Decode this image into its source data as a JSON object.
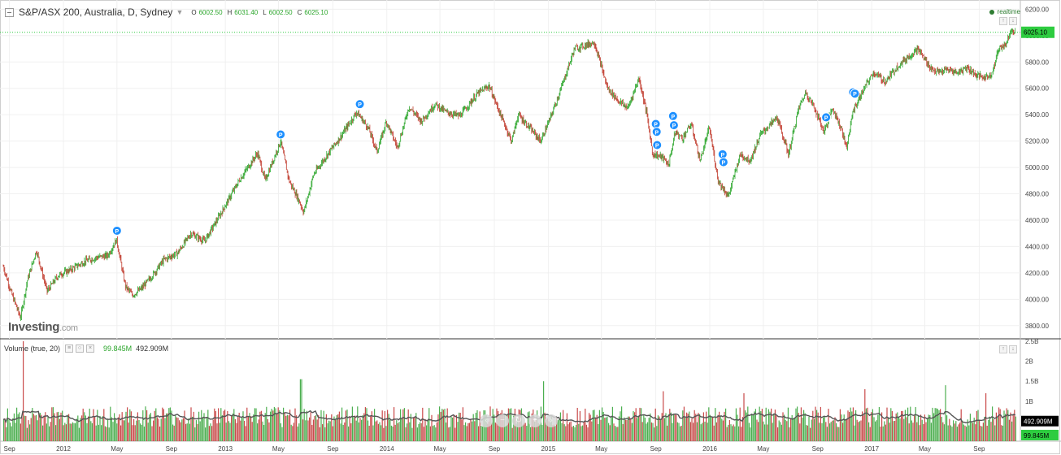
{
  "header": {
    "title": "S&P/ASX 200, Australia, D, Sydney",
    "o_label": "O",
    "o_value": "6002.50",
    "h_label": "H",
    "h_value": "6031.40",
    "l_label": "L",
    "l_value": "6002.50",
    "c_label": "C",
    "c_value": "6025.10",
    "realtime": "realtime"
  },
  "volume_header": {
    "title": "Volume (true, 20)",
    "value_green": "99.845M",
    "value_ma": "492.909M"
  },
  "logo": {
    "text": "Investing",
    "suffix": ".com"
  },
  "colors": {
    "up": "#2aa52a",
    "down": "#c0392b",
    "volume_up": "#4caf50",
    "volume_down": "#c94a4a",
    "ma": "#555555",
    "last_price_bg": "#2ecc40",
    "p_marker": "#1e90ff"
  },
  "chart_data": [
    {
      "type": "line",
      "title": "S&P/ASX 200, Australia, D, Sydney",
      "price_axis": {
        "ticks": [
          "6200.00",
          "6000.00",
          "5800.00",
          "5600.00",
          "5400.00",
          "5200.00",
          "5000.00",
          "4800.00",
          "4600.00",
          "4400.00",
          "4200.00",
          "4000.00",
          "3800.00"
        ],
        "ylim": [
          3700,
          6270
        ]
      },
      "last_price_label": "6025.10",
      "last_price": 6025.1,
      "x_ticks": [
        "Sep",
        "2012",
        "May",
        "Sep",
        "2013",
        "May",
        "Sep",
        "2014",
        "May",
        "Sep",
        "2015",
        "May",
        "Sep",
        "2016",
        "May",
        "Sep",
        "2017",
        "May",
        "Sep"
      ],
      "x_tick_dates": [
        "2011-09-01",
        "2012-01-01",
        "2012-05-01",
        "2012-09-01",
        "2013-01-01",
        "2013-05-01",
        "2013-09-01",
        "2014-01-01",
        "2014-05-01",
        "2014-09-01",
        "2015-01-01",
        "2015-05-01",
        "2015-09-01",
        "2016-01-01",
        "2016-05-01",
        "2016-09-01",
        "2017-01-01",
        "2017-05-01",
        "2017-09-01"
      ],
      "x_range": [
        "2011-08-18",
        "2017-11-22"
      ],
      "close_series": [
        [
          "2011-08-18",
          4250
        ],
        [
          "2011-09-05",
          4050
        ],
        [
          "2011-09-26",
          3860
        ],
        [
          "2011-10-12",
          4150
        ],
        [
          "2011-11-01",
          4370
        ],
        [
          "2011-11-25",
          4060
        ],
        [
          "2011-12-20",
          4180
        ],
        [
          "2012-01-20",
          4230
        ],
        [
          "2012-02-20",
          4290
        ],
        [
          "2012-03-20",
          4320
        ],
        [
          "2012-04-10",
          4330
        ],
        [
          "2012-04-30",
          4450
        ],
        [
          "2012-05-20",
          4100
        ],
        [
          "2012-06-05",
          4030
        ],
        [
          "2012-06-25",
          4080
        ],
        [
          "2012-07-20",
          4180
        ],
        [
          "2012-08-15",
          4300
        ],
        [
          "2012-09-15",
          4350
        ],
        [
          "2012-10-15",
          4500
        ],
        [
          "2012-11-15",
          4440
        ],
        [
          "2012-12-20",
          4640
        ],
        [
          "2013-02-01",
          4900
        ],
        [
          "2013-03-15",
          5110
        ],
        [
          "2013-04-01",
          4900
        ],
        [
          "2013-05-06",
          5200
        ],
        [
          "2013-05-25",
          4900
        ],
        [
          "2013-06-15",
          4760
        ],
        [
          "2013-06-27",
          4660
        ],
        [
          "2013-07-20",
          4950
        ],
        [
          "2013-08-20",
          5100
        ],
        [
          "2013-09-20",
          5240
        ],
        [
          "2013-10-25",
          5420
        ],
        [
          "2013-11-20",
          5300
        ],
        [
          "2013-12-10",
          5120
        ],
        [
          "2013-12-31",
          5350
        ],
        [
          "2014-01-25",
          5150
        ],
        [
          "2014-02-20",
          5460
        ],
        [
          "2014-03-20",
          5350
        ],
        [
          "2014-04-20",
          5480
        ],
        [
          "2014-05-15",
          5420
        ],
        [
          "2014-06-15",
          5390
        ],
        [
          "2014-07-25",
          5560
        ],
        [
          "2014-08-20",
          5620
        ],
        [
          "2014-09-15",
          5400
        ],
        [
          "2014-10-10",
          5200
        ],
        [
          "2014-10-25",
          5400
        ],
        [
          "2014-11-20",
          5300
        ],
        [
          "2014-12-15",
          5200
        ],
        [
          "2015-01-05",
          5370
        ],
        [
          "2015-01-30",
          5600
        ],
        [
          "2015-03-01",
          5900
        ],
        [
          "2015-04-15",
          5950
        ],
        [
          "2015-05-15",
          5600
        ],
        [
          "2015-06-10",
          5500
        ],
        [
          "2015-06-30",
          5450
        ],
        [
          "2015-07-25",
          5680
        ],
        [
          "2015-08-12",
          5400
        ],
        [
          "2015-08-25",
          5100
        ],
        [
          "2015-09-15",
          5080
        ],
        [
          "2015-09-30",
          5020
        ],
        [
          "2015-10-15",
          5270
        ],
        [
          "2015-10-31",
          5220
        ],
        [
          "2015-11-20",
          5330
        ],
        [
          "2015-12-10",
          5050
        ],
        [
          "2015-12-31",
          5300
        ],
        [
          "2016-01-20",
          4900
        ],
        [
          "2016-02-12",
          4780
        ],
        [
          "2016-03-10",
          5100
        ],
        [
          "2016-04-01",
          5050
        ],
        [
          "2016-04-25",
          5250
        ],
        [
          "2016-06-01",
          5380
        ],
        [
          "2016-06-27",
          5100
        ],
        [
          "2016-07-20",
          5450
        ],
        [
          "2016-08-05",
          5570
        ],
        [
          "2016-08-25",
          5450
        ],
        [
          "2016-09-15",
          5270
        ],
        [
          "2016-10-05",
          5450
        ],
        [
          "2016-10-25",
          5290
        ],
        [
          "2016-11-05",
          5150
        ],
        [
          "2016-11-20",
          5430
        ],
        [
          "2016-12-15",
          5600
        ],
        [
          "2017-01-05",
          5720
        ],
        [
          "2017-02-01",
          5650
        ],
        [
          "2017-03-01",
          5770
        ],
        [
          "2017-04-15",
          5900
        ],
        [
          "2017-05-15",
          5750
        ],
        [
          "2017-06-01",
          5720
        ],
        [
          "2017-06-20",
          5740
        ],
        [
          "2017-07-15",
          5720
        ],
        [
          "2017-08-05",
          5760
        ],
        [
          "2017-08-25",
          5700
        ],
        [
          "2017-09-15",
          5680
        ],
        [
          "2017-10-01",
          5720
        ],
        [
          "2017-10-15",
          5900
        ],
        [
          "2017-11-01",
          5940
        ],
        [
          "2017-11-12",
          6050
        ],
        [
          "2017-11-22",
          6025.1
        ]
      ],
      "markers": [
        {
          "label": "P",
          "date": "2012-05-01",
          "y": 4520
        },
        {
          "label": "P",
          "date": "2013-05-06",
          "y": 5250
        },
        {
          "label": "P",
          "date": "2013-11-01",
          "y": 5480
        },
        {
          "label": "P",
          "date": "2015-09-01",
          "y": 5330
        },
        {
          "label": "P",
          "date": "2015-09-03",
          "y": 5270
        },
        {
          "label": "P",
          "date": "2015-09-04",
          "y": 5170
        },
        {
          "label": "P",
          "date": "2015-10-10",
          "y": 5390
        },
        {
          "label": "P",
          "date": "2015-10-12",
          "y": 5320
        },
        {
          "label": "P",
          "date": "2016-01-30",
          "y": 5100
        },
        {
          "label": "P",
          "date": "2016-02-01",
          "y": 5040
        },
        {
          "label": "P",
          "date": "2016-09-20",
          "y": 5380
        },
        {
          "label": "P",
          "date": "2016-11-20",
          "y": 5570
        },
        {
          "label": "P",
          "date": "2016-11-24",
          "y": 5560
        }
      ]
    },
    {
      "type": "bar",
      "title": "Volume (true, 20)",
      "y_ticks": [
        "2.5B",
        "2B",
        "1.5B",
        "1B"
      ],
      "ylim": [
        0,
        2500000000
      ],
      "typical_volume": 600000000,
      "moving_average_last": "492.909M",
      "last_volume": "99.845M",
      "last_volume_value": 99845000,
      "moving_average_value": 492909000,
      "spikes": [
        {
          "date": "2011-09-30",
          "value": 2500000000
        },
        {
          "date": "2013-06-20",
          "value": 1550000000
        },
        {
          "date": "2014-12-19",
          "value": 1500000000
        },
        {
          "date": "2015-09-18",
          "value": 1250000000
        },
        {
          "date": "2016-03-18",
          "value": 1200000000
        },
        {
          "date": "2016-12-16",
          "value": 1300000000
        },
        {
          "date": "2017-06-16",
          "value": 1400000000
        },
        {
          "date": "2017-09-15",
          "value": 1200000000
        }
      ]
    }
  ]
}
